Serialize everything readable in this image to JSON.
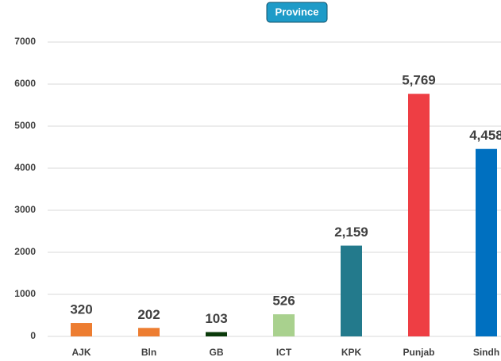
{
  "chart_data": {
    "type": "bar",
    "title": "Province",
    "categories": [
      "AJK",
      "Bln",
      "GB",
      "ICT",
      "KPK",
      "Punjab",
      "Sindh"
    ],
    "values": [
      320,
      202,
      103,
      526,
      2159,
      5769,
      4458
    ],
    "value_labels": [
      "320",
      "202",
      "103",
      "526",
      "2,159",
      "5,769",
      "4,458"
    ],
    "colors": [
      "#ED7D31",
      "#ED7D31",
      "#0A3A0A",
      "#A9D18E",
      "#237A8C",
      "#EE3E44",
      "#0070C0"
    ],
    "ylim": [
      0,
      7000
    ],
    "yticks": [
      0,
      1000,
      2000,
      3000,
      4000,
      5000,
      6000,
      7000
    ],
    "grid": true
  }
}
